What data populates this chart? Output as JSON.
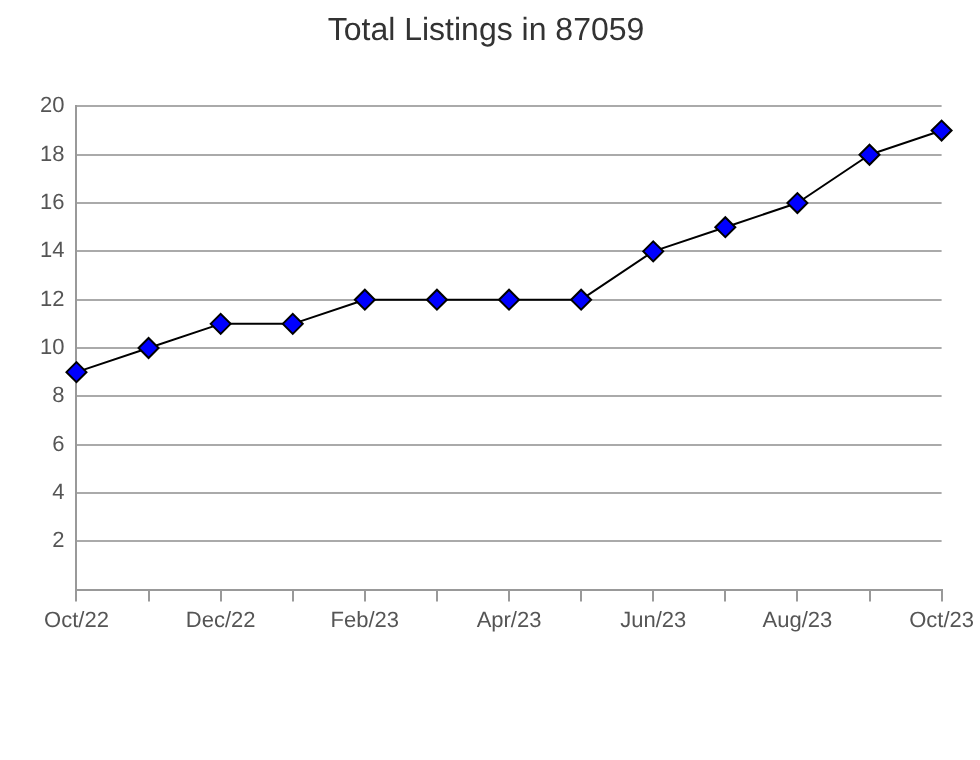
{
  "chart_data": {
    "type": "line",
    "title": "Total Listings in 87059",
    "categories": [
      "Oct/22",
      null,
      "Dec/22",
      null,
      "Feb/23",
      null,
      "Apr/23",
      null,
      "Jun/23",
      null,
      "Aug/23",
      null,
      "Oct/23"
    ],
    "series": [
      {
        "color": "#0000ff",
        "values": [
          9,
          10,
          11,
          11,
          12,
          12,
          12,
          12,
          14,
          15,
          16,
          18,
          19
        ]
      }
    ],
    "ylim": [
      0,
      20
    ],
    "yticks": [
      {
        "value": 0,
        "label": null
      },
      2,
      4,
      6,
      8,
      10,
      12,
      14,
      16,
      18,
      20
    ],
    "grid": "y",
    "legend": false,
    "marker": "diamond",
    "line_style": "solid"
  }
}
